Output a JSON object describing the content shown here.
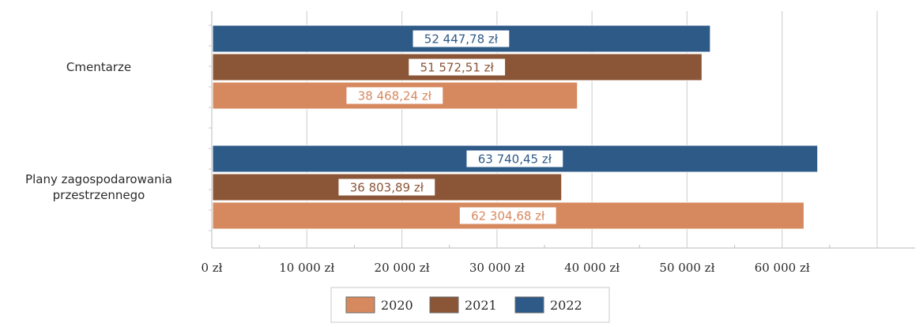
{
  "chart_data": {
    "type": "bar",
    "orientation": "horizontal",
    "categories": [
      "Cmentarze",
      "Plany zagospodarowania przestrzennego"
    ],
    "category_lines": [
      [
        "Cmentarze"
      ],
      [
        "Plany zagospodarowania",
        "przestrzennego"
      ]
    ],
    "series": [
      {
        "name": "2022",
        "color": "#2e5a88",
        "values": [
          52447.78,
          63740.45
        ],
        "labels": [
          "52 447,78 zł",
          "63 740,45 zł"
        ]
      },
      {
        "name": "2021",
        "color": "#8b5537",
        "values": [
          51572.51,
          36803.89
        ],
        "labels": [
          "51 572,51 zł",
          "36 803,89 zł"
        ]
      },
      {
        "name": "2020",
        "color": "#d6895f",
        "values": [
          38468.24,
          62304.68
        ],
        "labels": [
          "38 468,24 zł",
          "62 304,68 zł"
        ]
      }
    ],
    "legend_order": [
      "2020",
      "2021",
      "2022"
    ],
    "xlim": [
      0,
      70000
    ],
    "xticks": [
      0,
      10000,
      20000,
      30000,
      40000,
      50000,
      60000
    ],
    "xtick_labels": [
      "0 zł",
      "10 000 zł",
      "20 000 zł",
      "30 000 zł",
      "40 000 zł",
      "50 000 zł",
      "60 000 zł"
    ],
    "grid": true,
    "legend_position": "bottom",
    "title": "",
    "xlabel": "",
    "ylabel": ""
  }
}
